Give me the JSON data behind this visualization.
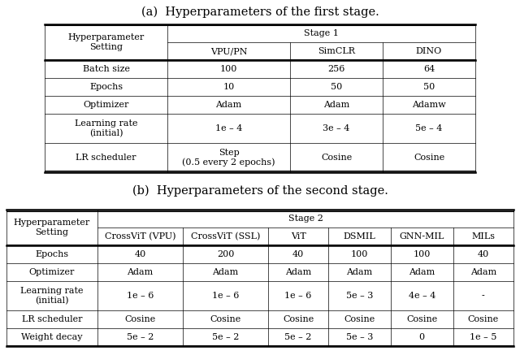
{
  "title_a": "(a)  Hyperparameters of the first stage.",
  "title_b": "(b)  Hyperparameters of the second stage.",
  "table_a": {
    "header1_left": "Hyperparameter\nSetting",
    "header1_span": "Stage 1",
    "header2": [
      "VPU/PN",
      "SimCLR",
      "DINO"
    ],
    "rows": [
      [
        "Batch size",
        "100",
        "256",
        "64"
      ],
      [
        "Epochs",
        "10",
        "50",
        "50"
      ],
      [
        "Optimizer",
        "Adam",
        "Adam",
        "Adamw"
      ],
      [
        "Learning rate\n(initial)",
        "1e – 4",
        "3e – 4",
        "5e – 4"
      ],
      [
        "LR scheduler",
        "Step\n(0.5 every 2 epochs)",
        "Cosine",
        "Cosine"
      ]
    ]
  },
  "table_b": {
    "header1_left": "Hyperparameter\nSetting",
    "header1_span": "Stage 2",
    "header2": [
      "CrossViT (VPU)",
      "CrossViT (SSL)",
      "ViT",
      "DSMIL",
      "GNN-MIL",
      "MILs"
    ],
    "rows": [
      [
        "Epochs",
        "40",
        "200",
        "40",
        "100",
        "100",
        "40"
      ],
      [
        "Optimizer",
        "Adam",
        "Adam",
        "Adam",
        "Adam",
        "Adam",
        "Adam"
      ],
      [
        "Learning rate\n(initial)",
        "1e – 6",
        "1e – 6",
        "1e – 6",
        "5e – 3",
        "4e – 4",
        "-"
      ],
      [
        "LR scheduler",
        "Cosine",
        "Cosine",
        "Cosine",
        "Cosine",
        "Cosine",
        "Cosine"
      ],
      [
        "Weight decay",
        "5e – 2",
        "5e – 2",
        "5e – 2",
        "5e – 3",
        "0",
        "1e – 5"
      ]
    ]
  },
  "font_size": 8.0,
  "title_font_size": 10.5,
  "bg_color": "#ffffff",
  "text_color": "#000000",
  "line_color": "#000000"
}
